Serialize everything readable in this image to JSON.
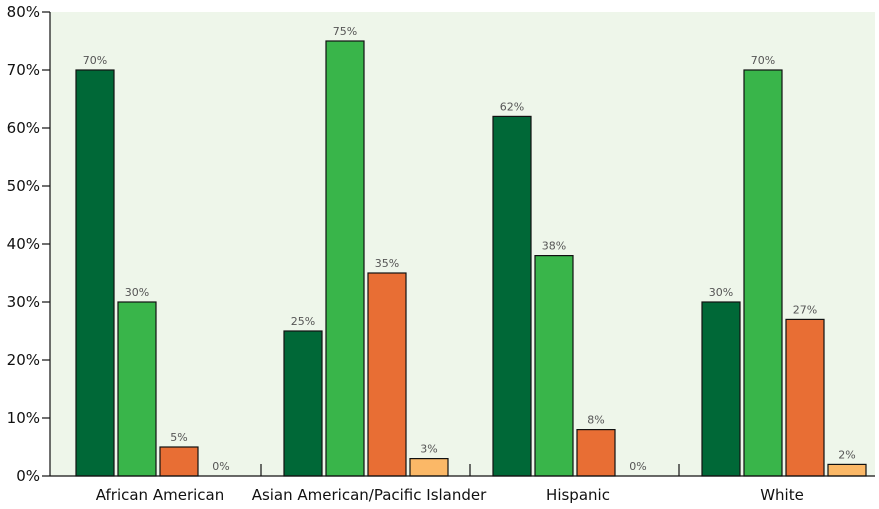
{
  "chart_data": {
    "type": "bar",
    "title": "",
    "xlabel": "",
    "ylabel": "",
    "categories": [
      "African American",
      "Asian American/Pacific Islander",
      "Hispanic",
      "White"
    ],
    "series": [
      {
        "values": [
          70,
          25,
          62,
          30
        ],
        "color": "#006837",
        "data_labels": [
          "70%",
          "25%",
          "62%",
          "30%"
        ]
      },
      {
        "values": [
          30,
          75,
          38,
          70
        ],
        "color": "#39b54a",
        "data_labels": [
          "30%",
          "75%",
          "38%",
          "70%"
        ]
      },
      {
        "values": [
          5,
          35,
          8,
          27
        ],
        "color": "#e86e34",
        "data_labels": [
          "5%",
          "35%",
          "8%",
          "27%"
        ]
      },
      {
        "values": [
          0,
          3,
          0,
          2
        ],
        "color": "#fbb867",
        "data_labels": [
          "0%",
          "3%",
          "0%",
          "2%"
        ]
      }
    ],
    "ylim": [
      0,
      80
    ],
    "yticks": [
      0,
      10,
      20,
      30,
      40,
      50,
      60,
      70,
      80
    ],
    "ytick_labels": [
      "0%",
      "10%",
      "20%",
      "30%",
      "40%",
      "50%",
      "60%",
      "70%",
      "80%"
    ],
    "plot_background": "#eef6ea",
    "grid": false,
    "legend": "none"
  }
}
